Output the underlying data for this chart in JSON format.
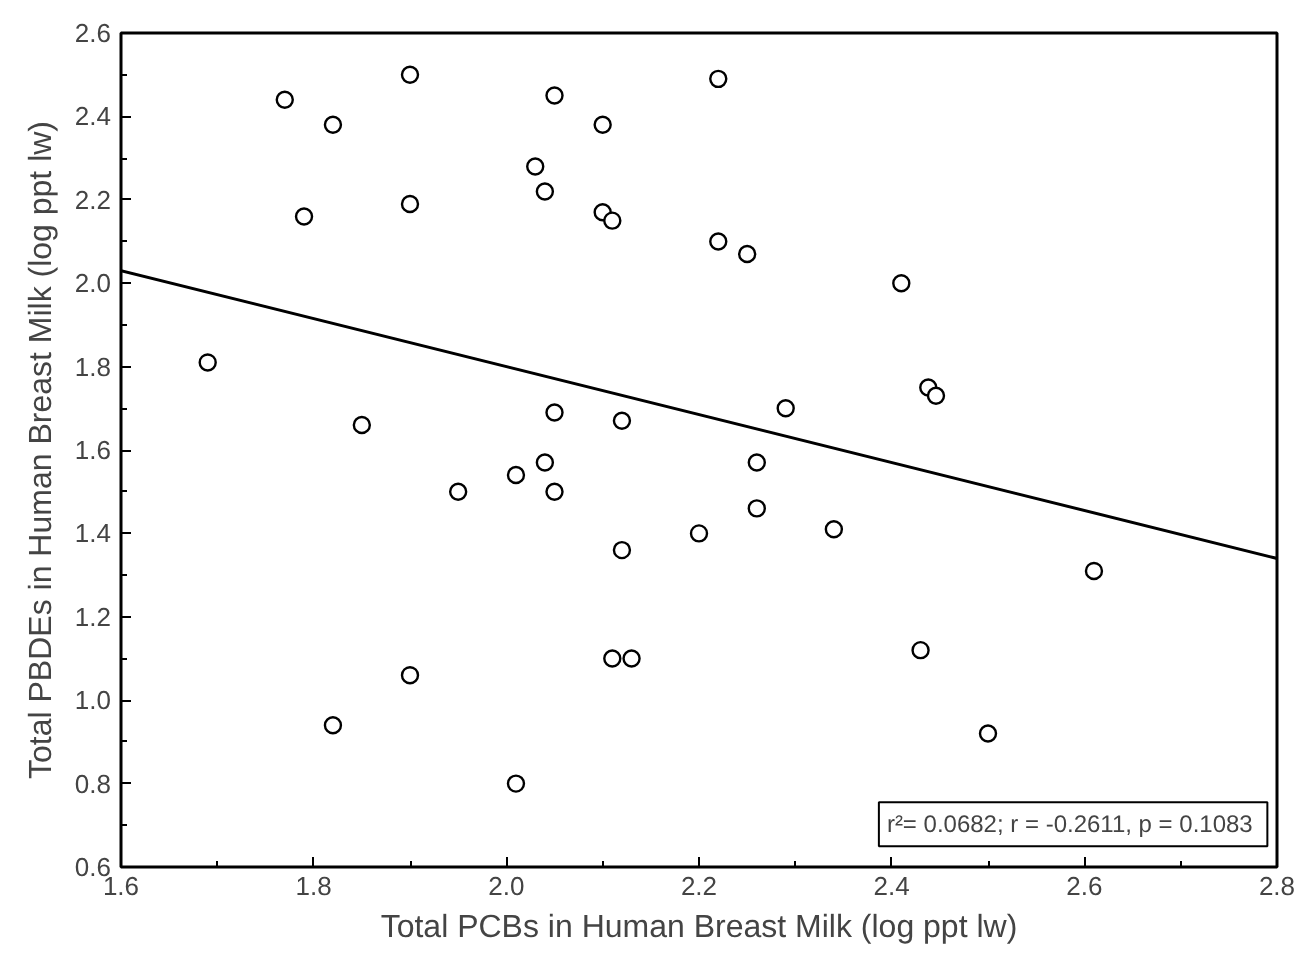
{
  "chart_data": {
    "type": "scatter",
    "xlabel": "Total PCBs in Human Breast Milk (log ppt lw)",
    "ylabel": "Total PBDEs in Human Breast Milk (log ppt lw)",
    "xlim": [
      1.6,
      2.8
    ],
    "ylim": [
      0.6,
      2.6
    ],
    "xticks": [
      1.6,
      1.8,
      {
        "value": 2,
        "label": "2.0"
      },
      2.2,
      2.4,
      2.6,
      2.8
    ],
    "yticks": [
      0.6,
      0.8,
      {
        "value": 1,
        "label": "1.0"
      },
      1.2,
      1.4,
      1.6,
      1.8,
      {
        "value": 2,
        "label": "2.0"
      },
      2.2,
      2.4,
      2.6
    ],
    "grid": false,
    "series": [
      {
        "marker": "circle",
        "color": "#000000",
        "x": [
          1.69,
          1.77,
          1.82,
          1.79,
          1.9,
          1.9,
          1.85,
          1.95,
          1.82,
          1.9,
          2.01,
          2.01,
          2.04,
          2.05,
          2.05,
          2.03,
          2.04,
          2.05,
          2.1,
          2.1,
          2.11,
          2.12,
          2.12,
          2.11,
          2.13,
          2.22,
          2.22,
          2.25,
          2.2,
          2.26,
          2.26,
          2.29,
          2.34,
          2.41,
          2.438,
          2.446,
          2.43,
          2.5,
          2.61
        ],
        "values": [
          1.81,
          2.44,
          2.38,
          2.16,
          2.5,
          2.19,
          1.66,
          1.5,
          0.94,
          1.06,
          0.8,
          1.54,
          1.57,
          1.69,
          1.5,
          2.28,
          2.22,
          2.45,
          2.38,
          2.17,
          2.15,
          1.67,
          1.36,
          1.1,
          1.1,
          2.49,
          2.1,
          2.07,
          1.4,
          1.57,
          1.46,
          1.7,
          1.41,
          2.0,
          1.75,
          1.73,
          1.12,
          0.92,
          1.31
        ]
      },
      {
        "type": "line",
        "color": "#000000",
        "x": [
          1.6,
          2.8
        ],
        "values": [
          2.03,
          1.34
        ]
      }
    ],
    "annotations": [
      "r²= 0.0682;  r = -0.2611, p = 0.1083"
    ]
  }
}
